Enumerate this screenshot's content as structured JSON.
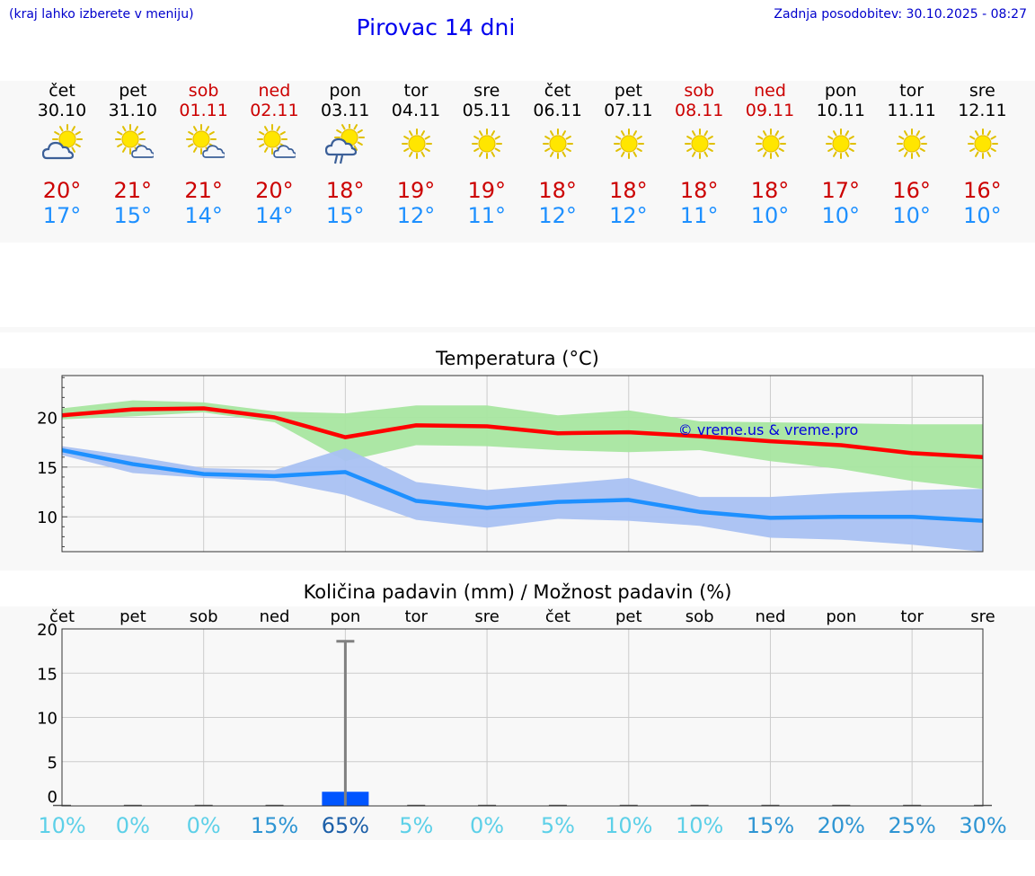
{
  "header": {
    "hint": "(kraj lahko izberete v meniju)",
    "title": "Pirovac 14 dni",
    "updated": "Zadnja posodobitev: 30.10.2025 - 08:27"
  },
  "forecast": [
    {
      "day": "čet",
      "date": "30.10",
      "icon": "sun-cloud-icon",
      "max": "20°",
      "min": "17°",
      "weekend": false
    },
    {
      "day": "pet",
      "date": "31.10",
      "icon": "sun-small-cloud-icon",
      "max": "21°",
      "min": "15°",
      "weekend": false
    },
    {
      "day": "sob",
      "date": "01.11",
      "icon": "sun-small-cloud-icon",
      "max": "21°",
      "min": "14°",
      "weekend": true
    },
    {
      "day": "ned",
      "date": "02.11",
      "icon": "sun-small-cloud-icon",
      "max": "20°",
      "min": "14°",
      "weekend": true
    },
    {
      "day": "pon",
      "date": "03.11",
      "icon": "sun-cloud-rain-icon",
      "max": "18°",
      "min": "15°",
      "weekend": false
    },
    {
      "day": "tor",
      "date": "04.11",
      "icon": "sun-icon",
      "max": "19°",
      "min": "12°",
      "weekend": false
    },
    {
      "day": "sre",
      "date": "05.11",
      "icon": "sun-icon",
      "max": "19°",
      "min": "11°",
      "weekend": false
    },
    {
      "day": "čet",
      "date": "06.11",
      "icon": "sun-icon",
      "max": "18°",
      "min": "12°",
      "weekend": false
    },
    {
      "day": "pet",
      "date": "07.11",
      "icon": "sun-icon",
      "max": "18°",
      "min": "12°",
      "weekend": false
    },
    {
      "day": "sob",
      "date": "08.11",
      "icon": "sun-icon",
      "max": "18°",
      "min": "11°",
      "weekend": true
    },
    {
      "day": "ned",
      "date": "09.11",
      "icon": "sun-icon",
      "max": "18°",
      "min": "10°",
      "weekend": true
    },
    {
      "day": "pon",
      "date": "10.11",
      "icon": "sun-icon",
      "max": "17°",
      "min": "10°",
      "weekend": false
    },
    {
      "day": "tor",
      "date": "11.11",
      "icon": "sun-icon",
      "max": "16°",
      "min": "10°",
      "weekend": false
    },
    {
      "day": "sre",
      "date": "12.11",
      "icon": "sun-icon",
      "max": "16°",
      "min": "10°",
      "weekend": false
    }
  ],
  "colors": {
    "max_line": "#ff0000",
    "max_band": "#a8e6a0",
    "min_line": "#1e90ff",
    "min_band": "#a9c1f2",
    "bar": "#0055ff",
    "error": "#808080",
    "weekend": "#cc0000"
  },
  "chart_data": [
    {
      "type": "line",
      "title": "Temperatura (°C)",
      "watermark": "© vreme.us & vreme.pro",
      "x": 14,
      "ylim": [
        6.5,
        24.2
      ],
      "yticks": [
        10,
        15,
        20
      ],
      "series": [
        {
          "name": "max",
          "values": [
            20.2,
            20.8,
            20.9,
            20.0,
            18.0,
            19.2,
            19.1,
            18.4,
            18.5,
            18.1,
            17.6,
            17.2,
            16.4,
            16.0
          ],
          "band_low": [
            19.8,
            20.1,
            20.5,
            19.5,
            15.6,
            17.2,
            17.1,
            16.7,
            16.5,
            16.7,
            15.6,
            14.8,
            13.6,
            12.8
          ],
          "band_high": [
            20.9,
            21.7,
            21.5,
            20.6,
            20.4,
            21.2,
            21.2,
            20.2,
            20.7,
            19.6,
            19.5,
            19.4,
            19.3,
            19.3
          ]
        },
        {
          "name": "min",
          "values": [
            16.7,
            15.3,
            14.3,
            14.1,
            14.5,
            11.6,
            10.9,
            11.5,
            11.7,
            10.5,
            9.9,
            10.0,
            10.0,
            9.6
          ],
          "band_low": [
            16.2,
            14.4,
            13.9,
            13.6,
            12.2,
            9.7,
            8.9,
            9.8,
            9.6,
            9.1,
            7.9,
            7.7,
            7.2,
            6.5
          ],
          "band_high": [
            17.1,
            16.1,
            14.9,
            14.7,
            16.9,
            13.5,
            12.7,
            13.3,
            13.9,
            12.0,
            12.0,
            12.4,
            12.7,
            12.8
          ]
        }
      ]
    },
    {
      "type": "bar",
      "title": "Količina padavin (mm) / Možnost padavin (%)",
      "categories": [
        "čet",
        "pet",
        "sob",
        "ned",
        "pon",
        "tor",
        "sre",
        "čet",
        "pet",
        "sob",
        "ned",
        "pon",
        "tor",
        "sre"
      ],
      "ylim": [
        0,
        20
      ],
      "yticks": [
        0,
        5,
        10,
        15,
        20
      ],
      "values": [
        0,
        0,
        0,
        0,
        1.6,
        0,
        0,
        0,
        0,
        0,
        0,
        0,
        0,
        0
      ],
      "error_high": [
        0,
        0,
        0,
        0,
        18.6,
        0,
        0,
        0,
        0,
        0,
        0,
        0,
        0,
        0
      ],
      "probability": [
        "10%",
        "0%",
        "0%",
        "15%",
        "65%",
        "5%",
        "0%",
        "5%",
        "10%",
        "10%",
        "15%",
        "20%",
        "25%",
        "30%"
      ]
    }
  ]
}
